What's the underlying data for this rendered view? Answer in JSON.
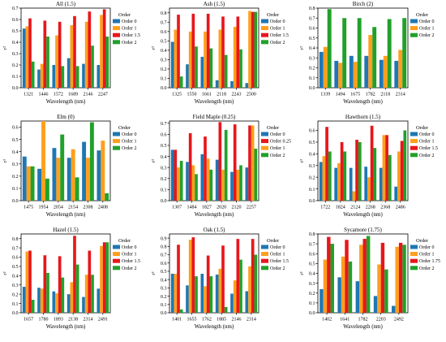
{
  "chart_data": [
    {
      "type": "bar",
      "title": "All (1.5)",
      "xlabel": "Wavelength (nm)",
      "ylabel": "r²",
      "ylim": [
        0,
        0.7
      ],
      "yticks": [
        "0.0",
        "0.1",
        "0.2",
        "0.3",
        "0.4",
        "0.5",
        "0.6",
        "0.7"
      ],
      "categories": [
        "1321",
        "1446",
        "1572",
        "1689",
        "2146",
        "2247"
      ],
      "legend_title": "Order",
      "series": [
        {
          "name": "Order 0",
          "values": [
            0.52,
            0.16,
            0.2,
            0.26,
            0.21,
            0.2
          ]
        },
        {
          "name": "Order 1",
          "values": [
            0.54,
            0.21,
            0.46,
            0.55,
            0.58,
            0.64
          ]
        },
        {
          "name": "Order 1.5",
          "values": [
            0.61,
            0.59,
            0.58,
            0.63,
            0.67,
            0.69
          ]
        },
        {
          "name": "Order 2",
          "values": [
            0.23,
            0.45,
            0.19,
            0.19,
            0.37,
            0.45
          ]
        }
      ]
    },
    {
      "type": "bar",
      "title": "Ash (1.5)",
      "xlabel": "Wavelength (nm)",
      "ylabel": "r²",
      "ylim": [
        0,
        0.85
      ],
      "yticks": [
        "0.0",
        "0.1",
        "0.2",
        "0.3",
        "0.4",
        "0.5",
        "0.6",
        "0.7",
        "0.8"
      ],
      "categories": [
        "1325",
        "1550",
        "1661",
        "2118",
        "2243",
        "2500"
      ],
      "legend_title": "Order",
      "series": [
        {
          "name": "Order 0",
          "values": [
            0.49,
            0.25,
            0.33,
            0.08,
            0.07,
            0.05
          ]
        },
        {
          "name": "Order 1",
          "values": [
            0.62,
            0.6,
            0.6,
            0.62,
            0.65,
            0.82
          ]
        },
        {
          "name": "Order 1.5",
          "values": [
            0.78,
            0.79,
            0.79,
            0.76,
            0.76,
            0.81
          ]
        },
        {
          "name": "Order 2",
          "values": [
            0.12,
            0.44,
            0.42,
            0.35,
            0.41,
            0.81
          ]
        }
      ]
    },
    {
      "type": "bar",
      "title": "Birch (2)",
      "xlabel": "Wavelength (nm)",
      "ylabel": "r²",
      "ylim": [
        0,
        0.8
      ],
      "yticks": [
        "0.0",
        "0.1",
        "0.2",
        "0.3",
        "0.4",
        "0.5",
        "0.6",
        "0.7",
        "0.8"
      ],
      "categories": [
        "1339",
        "1494",
        "1675",
        "1782",
        "2118",
        "2314"
      ],
      "legend_title": "Order",
      "series": [
        {
          "name": "Order 0",
          "values": [
            0.36,
            0.27,
            0.32,
            0.32,
            0.28,
            0.27
          ]
        },
        {
          "name": "Order 1",
          "values": [
            0.41,
            0.25,
            0.26,
            0.53,
            0.32,
            0.38
          ]
        },
        {
          "name": "Order 2",
          "values": [
            0.79,
            0.7,
            0.7,
            0.61,
            0.69,
            0.7
          ]
        }
      ]
    },
    {
      "type": "bar",
      "title": "Elm (0)",
      "xlabel": "Wavelength (nm)",
      "ylabel": "r²",
      "ylim": [
        0,
        0.65
      ],
      "yticks": [
        "0.0",
        "0.1",
        "0.2",
        "0.3",
        "0.4",
        "0.5",
        "0.6"
      ],
      "categories": [
        "1475",
        "1954",
        "2054",
        "2154",
        "2308",
        "2408"
      ],
      "legend_title": "Order",
      "series": [
        {
          "name": "Order 0",
          "values": [
            0.36,
            0.26,
            0.43,
            0.35,
            0.48,
            0.41
          ]
        },
        {
          "name": "Order 1",
          "values": [
            0.28,
            0.65,
            0.35,
            0.42,
            0.35,
            0.49
          ]
        },
        {
          "name": "Order 2",
          "values": [
            0.28,
            0.18,
            0.54,
            0.19,
            0.64,
            0.06
          ]
        }
      ]
    },
    {
      "type": "bar",
      "title": "Field Maple (0.25)",
      "xlabel": "Wavelength (nm)",
      "ylabel": "r²",
      "ylim": [
        0,
        0.72
      ],
      "yticks": [
        "0.0",
        "0.1",
        "0.2",
        "0.3",
        "0.4",
        "0.5",
        "0.6",
        "0.7"
      ],
      "categories": [
        "1307",
        "1484",
        "1827",
        "2020",
        "2120",
        "2257"
      ],
      "legend_title": "Order",
      "series": [
        {
          "name": "Order 0",
          "values": [
            0.46,
            0.35,
            0.42,
            0.37,
            0.26,
            0.3
          ]
        },
        {
          "name": "Order 0.25",
          "values": [
            0.46,
            0.61,
            0.58,
            0.71,
            0.69,
            0.68
          ]
        },
        {
          "name": "Order 1",
          "values": [
            0.3,
            0.32,
            0.38,
            0.28,
            0.28,
            0.68
          ]
        },
        {
          "name": "Order 2",
          "values": [
            0.36,
            0.24,
            0.28,
            0.64,
            0.32,
            0.47
          ]
        }
      ]
    },
    {
      "type": "bar",
      "title": "Hawthorn (1.5)",
      "xlabel": "Wavelength (nm)",
      "ylabel": "r²",
      "ylim": [
        0,
        0.68
      ],
      "yticks": [
        "0.0",
        "0.1",
        "0.2",
        "0.3",
        "0.4",
        "0.5",
        "0.6"
      ],
      "categories": [
        "1722",
        "1824",
        "2124",
        "2268",
        "2368",
        "2486"
      ],
      "legend_title": "Order",
      "series": [
        {
          "name": "Order 0",
          "values": [
            0.33,
            0.28,
            0.28,
            0.29,
            0.28,
            0.12
          ]
        },
        {
          "name": "Order 1",
          "values": [
            0.38,
            0.32,
            0.08,
            0.2,
            0.56,
            0.42
          ]
        },
        {
          "name": "Order 1.5",
          "values": [
            0.63,
            0.5,
            0.52,
            0.64,
            0.56,
            0.51
          ]
        },
        {
          "name": "Order 2",
          "values": [
            0.42,
            0.42,
            0.5,
            0.45,
            0.39,
            0.6
          ]
        }
      ]
    },
    {
      "type": "bar",
      "title": "Hazel (1.5)",
      "xlabel": "Wavelength (nm)",
      "ylabel": "r²",
      "ylim": [
        0,
        0.85
      ],
      "yticks": [
        "0.0",
        "0.1",
        "0.2",
        "0.3",
        "0.4",
        "0.5",
        "0.6",
        "0.7",
        "0.8"
      ],
      "categories": [
        "1657",
        "1780",
        "1893",
        "2138",
        "2314",
        "2491"
      ],
      "legend_title": "Order",
      "series": [
        {
          "name": "Order 0",
          "values": [
            0.28,
            0.27,
            0.23,
            0.2,
            0.17,
            0.26
          ]
        },
        {
          "name": "Order 1",
          "values": [
            0.66,
            0.26,
            0.21,
            0.33,
            0.41,
            0.72
          ]
        },
        {
          "name": "Order 1.5",
          "values": [
            0.67,
            0.62,
            0.61,
            0.83,
            0.67,
            0.76
          ]
        },
        {
          "name": "Order 2",
          "values": [
            0.14,
            0.43,
            0.38,
            0.52,
            0.41,
            0.76
          ]
        }
      ]
    },
    {
      "type": "bar",
      "title": "Oak (1.5)",
      "xlabel": "Wavelength (nm)",
      "ylabel": "r²",
      "ylim": [
        0,
        0.95
      ],
      "yticks": [
        "0.0",
        "0.1",
        "0.2",
        "0.3",
        "0.4",
        "0.5",
        "0.6",
        "0.7",
        "0.8",
        "0.9"
      ],
      "categories": [
        "1401",
        "1655",
        "1762",
        "1885",
        "2146",
        "2314"
      ],
      "legend_title": "Order",
      "series": [
        {
          "name": "Order 0",
          "values": [
            0.47,
            0.33,
            0.47,
            0.46,
            0.23,
            0.26
          ]
        },
        {
          "name": "Order 1",
          "values": [
            0.47,
            0.88,
            0.32,
            0.53,
            0.39,
            0.56
          ]
        },
        {
          "name": "Order 1.5",
          "values": [
            0.82,
            0.91,
            0.69,
            0.81,
            0.89,
            0.89
          ]
        },
        {
          "name": "Order 2",
          "values": [
            0.04,
            0.44,
            0.44,
            0.07,
            0.64,
            0.7
          ]
        }
      ]
    },
    {
      "type": "bar",
      "title": "Sycamore (1.75)",
      "xlabel": "Wavelength (nm)",
      "ylabel": "r²",
      "ylim": [
        0,
        0.8
      ],
      "yticks": [
        "0.0",
        "0.1",
        "0.2",
        "0.3",
        "0.4",
        "0.5",
        "0.6",
        "0.7",
        "0.8"
      ],
      "categories": [
        "1402",
        "1641",
        "1782",
        "2203",
        "2492"
      ],
      "legend_title": "Order",
      "series": [
        {
          "name": "Order 0",
          "values": [
            0.24,
            0.36,
            0.32,
            0.17,
            0.07
          ]
        },
        {
          "name": "Order 1",
          "values": [
            0.54,
            0.57,
            0.69,
            0.49,
            0.67
          ]
        },
        {
          "name": "Order 1.75",
          "values": [
            0.77,
            0.74,
            0.75,
            0.71,
            0.71
          ]
        },
        {
          "name": "Order 2",
          "values": [
            0.7,
            0.52,
            0.78,
            0.44,
            0.69
          ]
        }
      ]
    }
  ],
  "colors": {
    "order_low": "#1f77b4",
    "order_mid": "#ff9f1c",
    "order_high": "#e8161b",
    "order_2": "#21a12a"
  }
}
